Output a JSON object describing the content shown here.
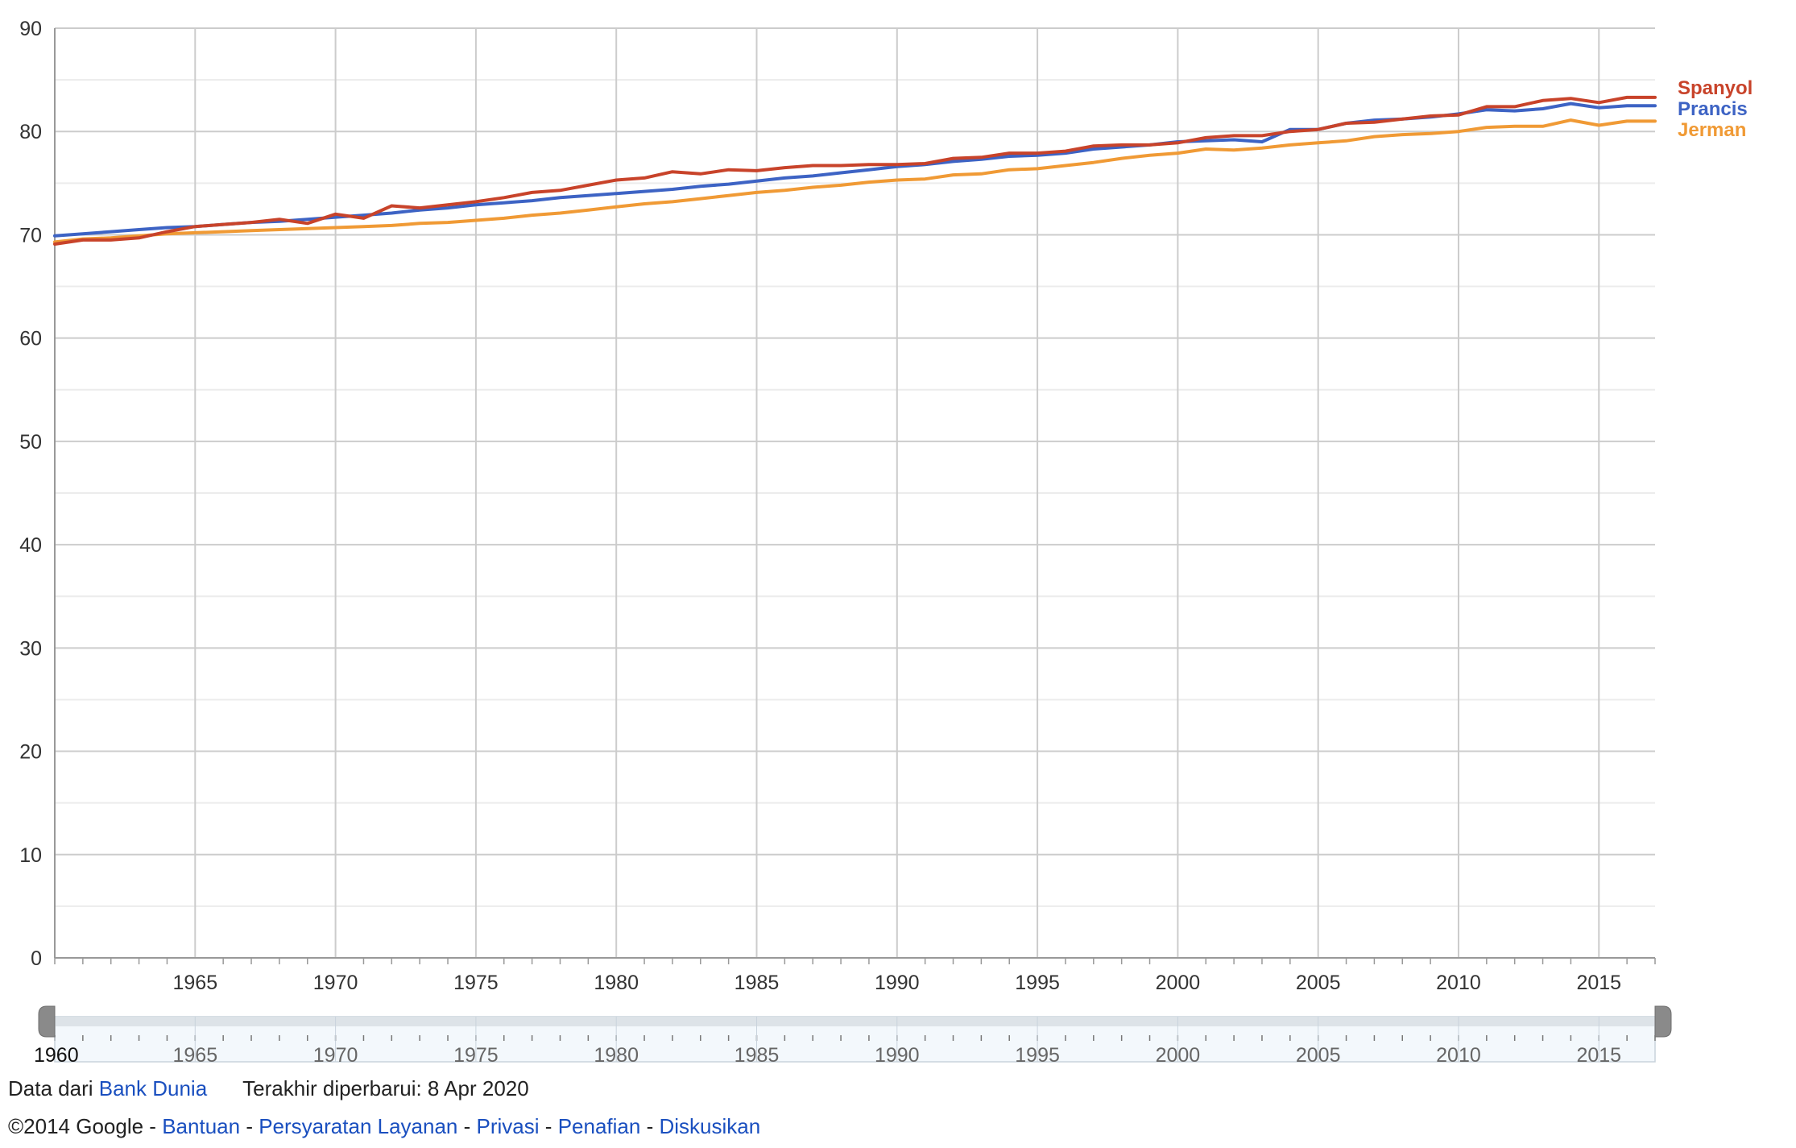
{
  "chart_data": {
    "type": "line",
    "x": [
      1960,
      1961,
      1962,
      1963,
      1964,
      1965,
      1966,
      1967,
      1968,
      1969,
      1970,
      1971,
      1972,
      1973,
      1974,
      1975,
      1976,
      1977,
      1978,
      1979,
      1980,
      1981,
      1982,
      1983,
      1984,
      1985,
      1986,
      1987,
      1988,
      1989,
      1990,
      1991,
      1992,
      1993,
      1994,
      1995,
      1996,
      1997,
      1998,
      1999,
      2000,
      2001,
      2002,
      2003,
      2004,
      2005,
      2006,
      2007,
      2008,
      2009,
      2010,
      2011,
      2012,
      2013,
      2014,
      2015,
      2016,
      2017
    ],
    "xticks": [
      1965,
      1970,
      1975,
      1980,
      1985,
      1990,
      1995,
      2000,
      2005,
      2010,
      2015
    ],
    "xlim": [
      1960,
      2017
    ],
    "ylim": [
      0,
      90
    ],
    "yticks": [
      0,
      10,
      20,
      30,
      40,
      50,
      60,
      70,
      80,
      90
    ],
    "grid": true,
    "legend_position": "right",
    "series": [
      {
        "name": "Spanyol",
        "color": "#c8432a",
        "values": [
          69.1,
          69.5,
          69.5,
          69.7,
          70.3,
          70.8,
          71.0,
          71.2,
          71.5,
          71.1,
          72.0,
          71.6,
          72.8,
          72.6,
          72.9,
          73.2,
          73.6,
          74.1,
          74.3,
          74.8,
          75.3,
          75.5,
          76.1,
          75.9,
          76.3,
          76.2,
          76.5,
          76.7,
          76.7,
          76.8,
          76.8,
          76.9,
          77.4,
          77.5,
          77.9,
          77.9,
          78.1,
          78.6,
          78.7,
          78.7,
          78.9,
          79.4,
          79.6,
          79.6,
          80.0,
          80.2,
          80.8,
          80.9,
          81.2,
          81.5,
          81.6,
          82.4,
          82.4,
          83.0,
          83.2,
          82.8,
          83.3,
          83.3
        ]
      },
      {
        "name": "Prancis",
        "color": "#3d63c4",
        "values": [
          69.9,
          70.1,
          70.3,
          70.5,
          70.7,
          70.8,
          71.0,
          71.2,
          71.3,
          71.5,
          71.7,
          71.9,
          72.1,
          72.4,
          72.6,
          72.9,
          73.1,
          73.3,
          73.6,
          73.8,
          74.0,
          74.2,
          74.4,
          74.7,
          74.9,
          75.2,
          75.5,
          75.7,
          76.0,
          76.3,
          76.6,
          76.8,
          77.1,
          77.3,
          77.6,
          77.7,
          77.9,
          78.3,
          78.5,
          78.7,
          79.0,
          79.1,
          79.2,
          79.0,
          80.2,
          80.2,
          80.8,
          81.1,
          81.2,
          81.4,
          81.7,
          82.1,
          82.0,
          82.2,
          82.7,
          82.3,
          82.5,
          82.5
        ]
      },
      {
        "name": "Jerman",
        "color": "#f09a35",
        "values": [
          69.3,
          69.6,
          69.7,
          69.9,
          70.1,
          70.2,
          70.3,
          70.4,
          70.5,
          70.6,
          70.7,
          70.8,
          70.9,
          71.1,
          71.2,
          71.4,
          71.6,
          71.9,
          72.1,
          72.4,
          72.7,
          73.0,
          73.2,
          73.5,
          73.8,
          74.1,
          74.3,
          74.6,
          74.8,
          75.1,
          75.3,
          75.4,
          75.8,
          75.9,
          76.3,
          76.4,
          76.7,
          77.0,
          77.4,
          77.7,
          77.9,
          78.3,
          78.2,
          78.4,
          78.7,
          78.9,
          79.1,
          79.5,
          79.7,
          79.8,
          80.0,
          80.4,
          80.5,
          80.5,
          81.1,
          80.6,
          81.0,
          81.0
        ]
      }
    ]
  },
  "range_slider": {
    "ticks": [
      "1960",
      "1965",
      "1970",
      "1975",
      "1980",
      "1985",
      "1990",
      "1995",
      "2000",
      "2005",
      "2010",
      "2015"
    ],
    "range": [
      1960,
      2017
    ]
  },
  "footer": {
    "source_prefix": "Data dari",
    "source_link": "Bank Dunia",
    "updated": "Terakhir diperbarui: 8 Apr 2020",
    "copyright": "©2014 Google",
    "sep": "-",
    "links": [
      "Bantuan",
      "Persyaratan Layanan",
      "Privasi",
      "Penafian",
      "Diskusikan"
    ]
  }
}
